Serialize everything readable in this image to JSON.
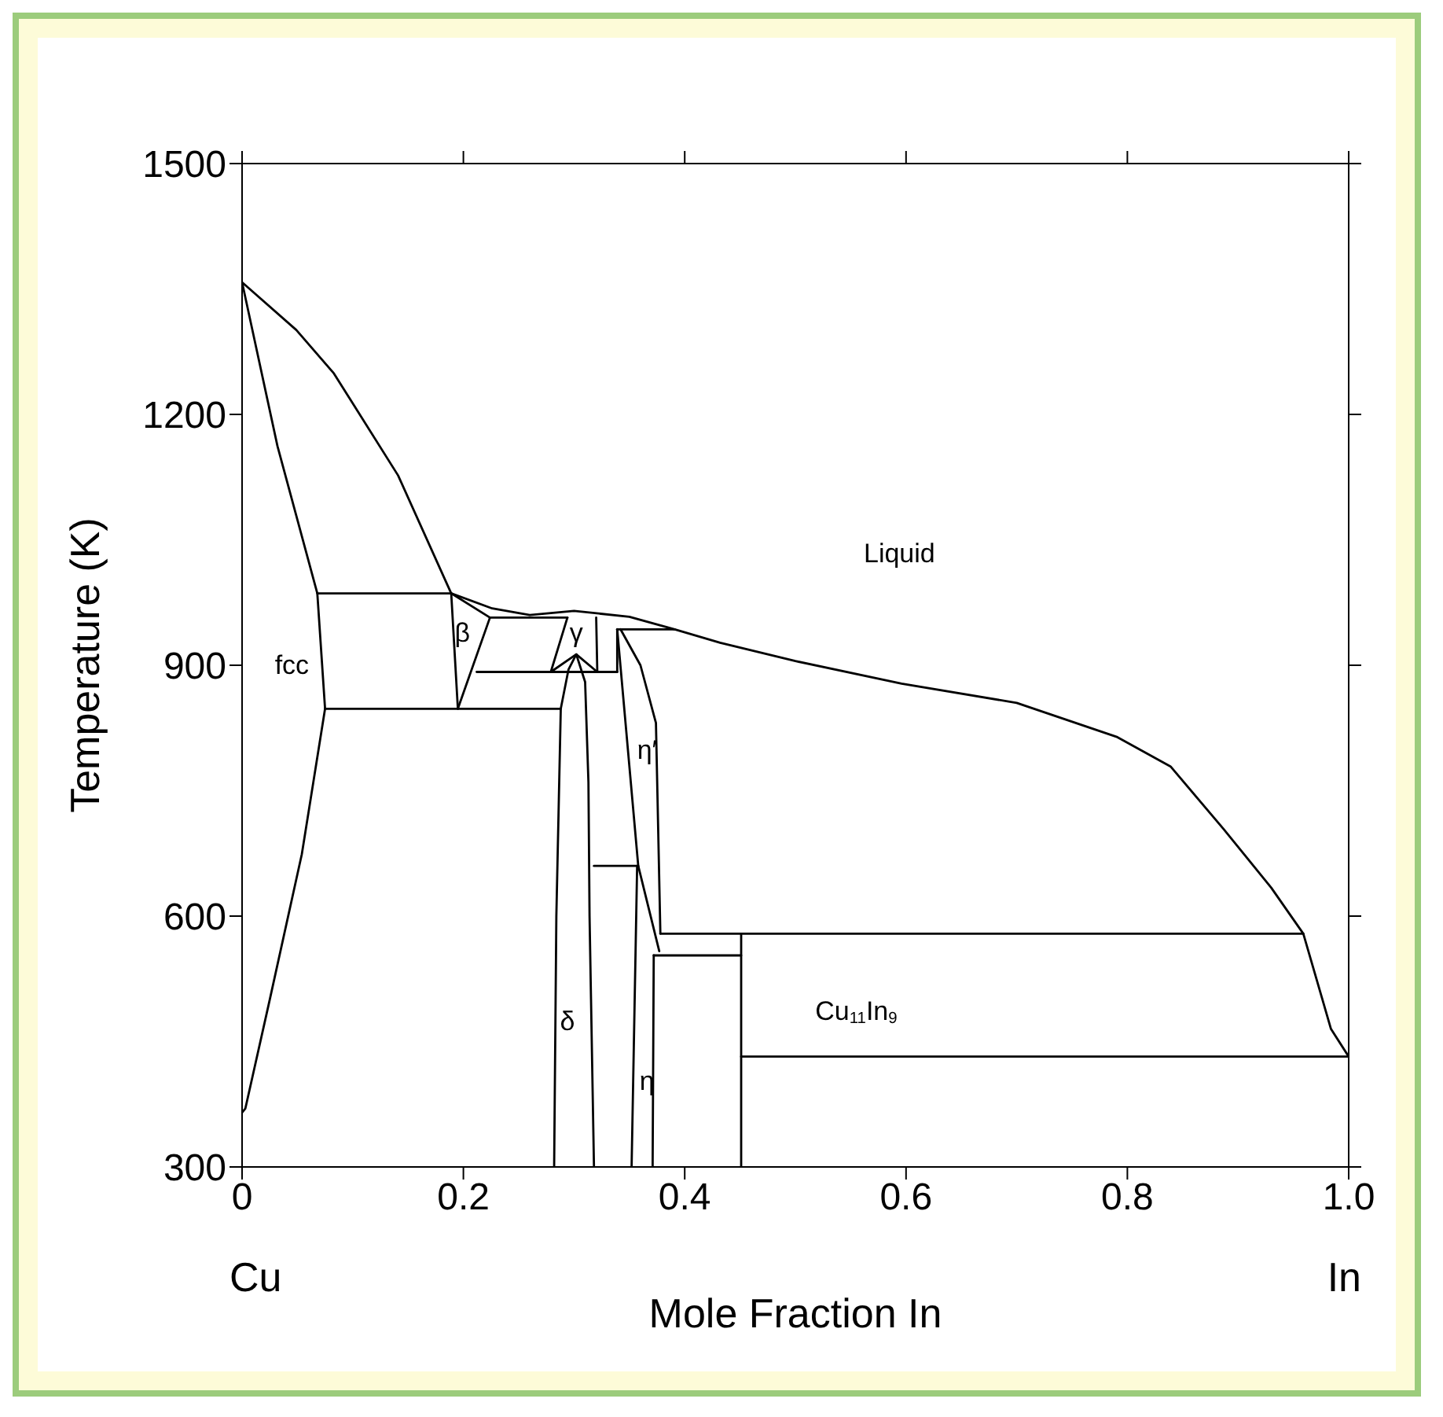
{
  "chart_data": {
    "type": "line",
    "xlabel": "Mole Fraction In",
    "ylabel": "Temperature (K)",
    "xlim": [
      0,
      1
    ],
    "xticks": [
      0,
      0.2,
      0.4,
      0.6,
      0.8,
      {
        "value": 1,
        "label": "1.0"
      }
    ],
    "ylim": [
      300,
      1500
    ],
    "yticks": [
      300,
      600,
      900,
      1200,
      1500
    ],
    "grid": false,
    "series": [
      {
        "color": "#000000",
        "x": [
          0,
          0.003,
          0.025,
          0.054,
          0.075,
          0.068,
          0.032,
          0,
          0.049,
          0.083,
          0.141,
          0.189,
          0.226,
          0.26,
          0.3,
          0.35,
          0.391,
          0.432,
          0.5,
          0.596,
          0.7,
          0.791,
          0.839,
          0.887,
          0.93,
          0.959,
          0.984,
          1.0
        ],
        "values": [
          365,
          370,
          500,
          674,
          848,
          986,
          1162,
          1358,
          1301,
          1249,
          1127,
          986,
          968,
          960,
          965,
          958,
          943,
          927,
          905,
          878,
          855,
          814,
          779,
          704,
          634,
          579,
          465,
          432
        ]
      },
      {
        "color": "#000000",
        "x": [
          0.068,
          0.189
        ],
        "values": [
          986,
          986
        ]
      },
      {
        "color": "#000000",
        "x": [
          0.075,
          0.288
        ],
        "values": [
          848,
          848
        ]
      },
      {
        "color": "#000000",
        "x": [
          0.189,
          0.195
        ],
        "values": [
          986,
          848
        ]
      },
      {
        "color": "#000000",
        "x": [
          0.189,
          0.224
        ],
        "values": [
          986,
          957
        ]
      },
      {
        "color": "#000000",
        "x": [
          0.195,
          0.224
        ],
        "values": [
          848,
          957
        ]
      },
      {
        "color": "#000000",
        "x": [
          0.224,
          0.294
        ],
        "values": [
          957,
          957
        ]
      },
      {
        "color": "#000000",
        "x": [
          0.294,
          0.279
        ],
        "values": [
          957,
          892
        ]
      },
      {
        "color": "#000000",
        "x": [
          0.212,
          0.339
        ],
        "values": [
          892,
          892
        ]
      },
      {
        "color": "#000000",
        "x": [
          0.32,
          0.321
        ],
        "values": [
          957,
          892
        ]
      },
      {
        "color": "#000000",
        "x": [
          0.279,
          0.302,
          0.321
        ],
        "values": [
          892,
          913,
          892
        ]
      },
      {
        "color": "#000000",
        "x": [
          0.282,
          0.284,
          0.288,
          0.295,
          0.302,
          0.31,
          0.313,
          0.314,
          0.318
        ],
        "values": [
          300,
          600,
          848,
          895,
          913,
          880,
          760,
          600,
          300
        ]
      },
      {
        "color": "#000000",
        "x": [
          0.339,
          0.339
        ],
        "values": [
          943,
          892
        ]
      },
      {
        "color": "#000000",
        "x": [
          0.339,
          0.391
        ],
        "values": [
          943,
          943
        ]
      },
      {
        "color": "#000000",
        "x": [
          0.339,
          0.358,
          0.377
        ],
        "values": [
          943,
          660,
          558
        ]
      },
      {
        "color": "#000000",
        "x": [
          0.342,
          0.36,
          0.374,
          0.378
        ],
        "values": [
          943,
          900,
          831,
          579
        ]
      },
      {
        "color": "#000000",
        "x": [
          0.318,
          0.358
        ],
        "values": [
          660,
          660
        ]
      },
      {
        "color": "#000000",
        "x": [
          0.357,
          0.352
        ],
        "values": [
          660,
          300
        ]
      },
      {
        "color": "#000000",
        "x": [
          0.371,
          0.372
        ],
        "values": [
          300,
          553
        ]
      },
      {
        "color": "#000000",
        "x": [
          0.372,
          0.451
        ],
        "values": [
          553,
          553
        ]
      },
      {
        "color": "#000000",
        "x": [
          0.378,
          0.959
        ],
        "values": [
          579,
          579
        ]
      },
      {
        "color": "#000000",
        "x": [
          0.451,
          0.451
        ],
        "values": [
          300,
          579
        ]
      },
      {
        "color": "#000000",
        "x": [
          0.451,
          1.0
        ],
        "values": [
          432,
          432
        ]
      }
    ],
    "annotations": [
      "Liquid",
      "fcc",
      "β",
      "γ",
      "η′",
      "δ",
      "η",
      "Cu$_{11}$In$_{9}$",
      "Cu",
      "In"
    ]
  }
}
